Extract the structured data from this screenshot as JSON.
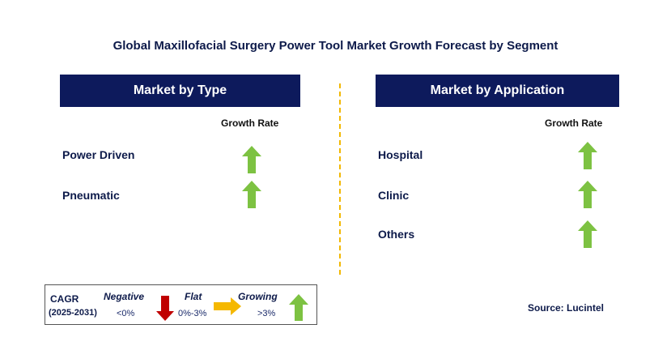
{
  "title": "Global Maxillofacial Surgery Power Tool Market Growth Forecast by Segment",
  "left_panel": {
    "header": "Market by Type",
    "growth_rate_label": "Growth Rate",
    "items": [
      {
        "label": "Power Driven",
        "trend": "growing"
      },
      {
        "label": "Pneumatic",
        "trend": "growing"
      }
    ]
  },
  "right_panel": {
    "header": "Market by Application",
    "growth_rate_label": "Growth Rate",
    "items": [
      {
        "label": "Hospital",
        "trend": "growing"
      },
      {
        "label": "Clinic",
        "trend": "growing"
      },
      {
        "label": "Others",
        "trend": "growing"
      }
    ]
  },
  "legend": {
    "cagr_label": "CAGR",
    "period": "(2025-2031)",
    "negative_label": "Negative",
    "negative_range": "<0%",
    "flat_label": "Flat",
    "flat_range": "0%-3%",
    "growing_label": "Growing",
    "growing_range": ">3%"
  },
  "source": "Source: Lucintel",
  "colors": {
    "header_bg": "#0d1a5c",
    "growing_arrow": "#7dc242",
    "negative_arrow": "#c00000",
    "flat_arrow": "#f5b800",
    "divider": "#f2b800"
  }
}
